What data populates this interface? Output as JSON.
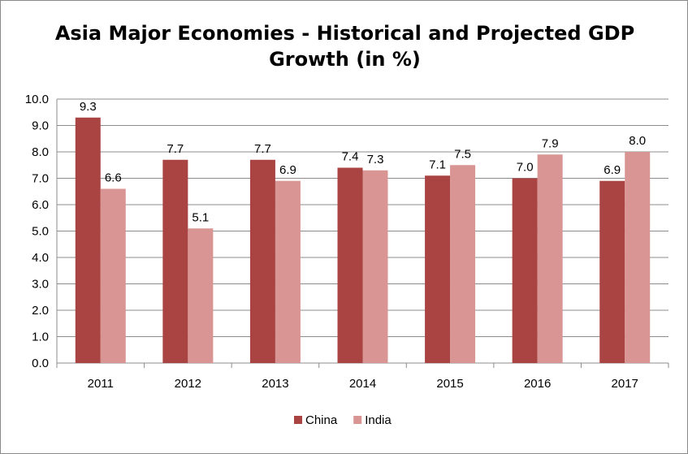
{
  "chart_data": {
    "type": "bar",
    "title_line1": "Asia Major Economies - Historical and Projected GDP",
    "title_line2": "Growth (in %)",
    "categories": [
      "2011",
      "2012",
      "2013",
      "2014",
      "2015",
      "2016",
      "2017"
    ],
    "series": [
      {
        "name": "China",
        "color": "#a94442",
        "values": [
          9.3,
          7.7,
          7.7,
          7.4,
          7.1,
          7.0,
          6.9
        ]
      },
      {
        "name": "India",
        "color": "#d99594",
        "values": [
          6.6,
          5.1,
          6.9,
          7.3,
          7.5,
          7.9,
          8.0
        ]
      }
    ],
    "ylim": [
      0,
      10
    ],
    "yticks": [
      "0.0",
      "1.0",
      "2.0",
      "3.0",
      "4.0",
      "5.0",
      "6.0",
      "7.0",
      "8.0",
      "9.0",
      "10.0"
    ],
    "grid": true,
    "legend_position": "bottom"
  }
}
